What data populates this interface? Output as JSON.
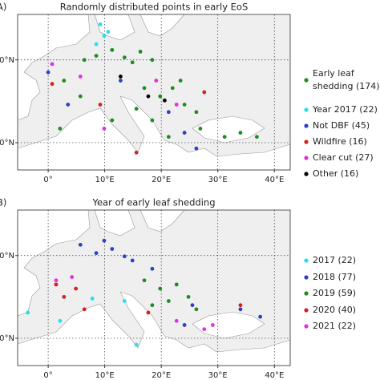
{
  "chart_data": [
    {
      "type": "scatter",
      "panel_label": "A)",
      "title": "Randomly distributed points in early EoS",
      "xlim": [
        -5.4,
        42.8
      ],
      "ylim": [
        36.7,
        55.5
      ],
      "xticks": [
        {
          "value": 0,
          "label": "0°"
        },
        {
          "value": 10,
          "label": "10°E"
        },
        {
          "value": 20,
          "label": "20°E"
        },
        {
          "value": 30,
          "label": "30°E"
        },
        {
          "value": 40,
          "label": "40°E"
        }
      ],
      "yticks": [
        {
          "value": 40,
          "label": "40°N"
        },
        {
          "value": 50,
          "label": "50°N"
        }
      ],
      "grid": true,
      "series": [
        {
          "name": "Early leaf shedding (174)",
          "color": "#1e8c1e",
          "x": [
            6.4,
            8.5,
            11.3,
            13.5,
            14.9,
            16.3,
            18.4,
            17.0,
            19.8,
            22.0,
            24.1,
            26.2,
            26.9,
            18.4,
            15.6,
            5.7,
            2.8,
            2.1,
            21.3,
            31.2,
            34.0,
            36.9,
            11.3,
            23.4
          ],
          "y": [
            50.0,
            50.5,
            51.2,
            50.3,
            49.7,
            51.0,
            50.0,
            46.6,
            45.6,
            46.6,
            44.6,
            43.7,
            41.7,
            42.7,
            44.1,
            45.6,
            47.5,
            41.7,
            40.7,
            40.7,
            41.2,
            40.7,
            42.7,
            47.5
          ]
        },
        {
          "name": "Year 2017 (22)",
          "color": "#22e0f0",
          "x": [
            9.2,
            9.9,
            8.5,
            10.6
          ],
          "y": [
            54.3,
            52.9,
            51.9,
            53.4
          ]
        },
        {
          "name": "Not DBF (45)",
          "color": "#2e3fc4",
          "x": [
            0.0,
            3.5,
            12.8,
            21.3,
            24.1,
            26.2
          ],
          "y": [
            48.5,
            44.6,
            47.5,
            43.7,
            41.2,
            39.3
          ]
        },
        {
          "name": "Wildfire (16)",
          "color": "#d81e1e",
          "x": [
            0.7,
            9.2,
            15.6,
            27.6
          ],
          "y": [
            47.1,
            44.6,
            38.8,
            46.1
          ]
        },
        {
          "name": "Clear cut (27)",
          "color": "#e030e0",
          "x": [
            0.7,
            5.7,
            19.1,
            22.7,
            9.9
          ],
          "y": [
            49.5,
            48.0,
            47.5,
            44.6,
            41.7
          ]
        },
        {
          "name": "Other (16)",
          "color": "#000000",
          "x": [
            12.8,
            17.7,
            20.6
          ],
          "y": [
            48.0,
            45.6,
            45.1
          ]
        }
      ]
    },
    {
      "type": "scatter",
      "panel_label": "B)",
      "title": "Year of early leaf shedding",
      "xlim": [
        -5.4,
        42.8
      ],
      "ylim": [
        36.7,
        55.5
      ],
      "xticks": [
        {
          "value": 0,
          "label": "0°"
        },
        {
          "value": 10,
          "label": "10°E"
        },
        {
          "value": 20,
          "label": "20°E"
        },
        {
          "value": 30,
          "label": "30°E"
        },
        {
          "value": 40,
          "label": "40°E"
        }
      ],
      "yticks": [
        {
          "value": 40,
          "label": "40°N"
        },
        {
          "value": 50,
          "label": "50°N"
        }
      ],
      "grid": true,
      "series": [
        {
          "name": "2017 (22)",
          "color": "#22e0f0",
          "x": [
            -3.6,
            2.1,
            7.8,
            13.5,
            15.6
          ],
          "y": [
            43.1,
            42.1,
            44.8,
            44.5,
            39.2
          ]
        },
        {
          "name": "2018 (77)",
          "color": "#2e3fc4",
          "x": [
            5.7,
            8.5,
            11.3,
            13.5,
            14.9,
            9.9,
            18.4,
            24.1,
            25.5,
            34.0,
            37.5
          ],
          "y": [
            51.3,
            50.3,
            50.8,
            49.9,
            49.4,
            51.8,
            48.4,
            41.6,
            44.0,
            43.5,
            42.6
          ]
        },
        {
          "name": "2019 (59)",
          "color": "#1e8c1e",
          "x": [
            17.0,
            19.8,
            22.7,
            24.8,
            21.3,
            18.4,
            26.2
          ],
          "y": [
            47.0,
            46.0,
            46.5,
            45.0,
            44.5,
            44.0,
            43.5
          ]
        },
        {
          "name": "2020 (40)",
          "color": "#d81e1e",
          "x": [
            1.4,
            2.8,
            4.9,
            6.4,
            17.7,
            34.0
          ],
          "y": [
            46.5,
            45.0,
            46.0,
            43.5,
            43.1,
            44.0
          ]
        },
        {
          "name": "2021 (22)",
          "color": "#e030e0",
          "x": [
            1.4,
            4.2,
            22.7,
            27.6,
            29.1
          ],
          "y": [
            47.0,
            47.4,
            42.1,
            41.1,
            41.6
          ]
        }
      ]
    }
  ]
}
